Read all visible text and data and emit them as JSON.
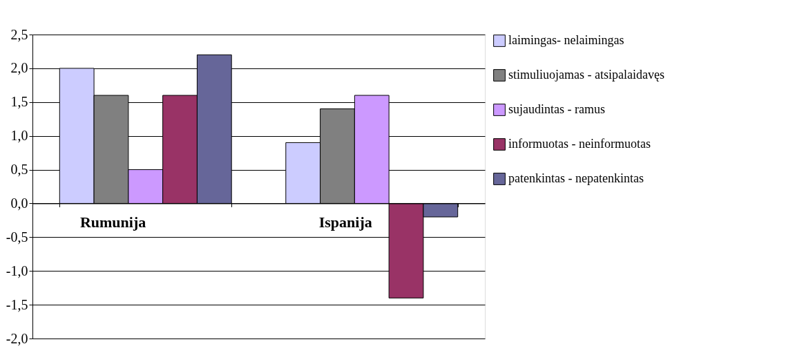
{
  "chart_data": {
    "type": "bar",
    "categories": [
      "Rumunija",
      "Ispanija"
    ],
    "series": [
      {
        "name": "laimingas- nelaimingas",
        "color": "#ccccff",
        "values": [
          2.0,
          0.9
        ]
      },
      {
        "name": "stimuliuojamas - atsipalaidavęs",
        "color": "#808080",
        "values": [
          1.6,
          1.4
        ]
      },
      {
        "name": "sujaudintas - ramus",
        "color": "#cc99ff",
        "values": [
          0.5,
          1.6
        ]
      },
      {
        "name": "informuotas - neinformuotas",
        "color": "#993366",
        "values": [
          1.6,
          -1.4
        ]
      },
      {
        "name": "patenkintas - nepatenkintas",
        "color": "#666699",
        "values": [
          2.2,
          -0.2
        ]
      }
    ],
    "ylim": [
      -2.0,
      2.5
    ],
    "yticks": [
      {
        "value": -2.0,
        "label": "-2,0"
      },
      {
        "value": -1.5,
        "label": "-1,5"
      },
      {
        "value": -1.0,
        "label": "-1,0"
      },
      {
        "value": -0.5,
        "label": "-0,5"
      },
      {
        "value": 0.0,
        "label": "0,0"
      },
      {
        "value": 0.5,
        "label": "0,5"
      },
      {
        "value": 1.0,
        "label": "1,0"
      },
      {
        "value": 1.5,
        "label": "1,5"
      },
      {
        "value": 2.0,
        "label": "2,0"
      },
      {
        "value": 2.5,
        "label": "2,5"
      }
    ],
    "grid": "y",
    "legend": "right"
  }
}
